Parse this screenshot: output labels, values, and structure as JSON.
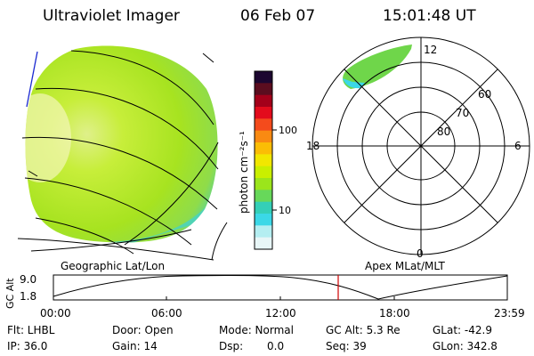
{
  "header": {
    "title": "Ultraviolet Imager",
    "date": "06 Feb 07",
    "time": "15:01:48 UT"
  },
  "colorbar": {
    "label": "photon cm⁻²s⁻¹",
    "ticks": [
      "100",
      "10"
    ],
    "colors": [
      "#1c0630",
      "#5b0d1f",
      "#a4001a",
      "#e30b1c",
      "#f44b1c",
      "#f98a12",
      "#fbbd05",
      "#f1e700",
      "#c9ef00",
      "#9be51b",
      "#67d85a",
      "#34cfb7",
      "#3bd8e7",
      "#b4eef1",
      "#e8f6f7"
    ]
  },
  "polar": {
    "mlt_labels": {
      "top": "12",
      "left": "18",
      "right": "6",
      "bottom": "0"
    },
    "lat_labels": [
      "60",
      "70",
      "80"
    ]
  },
  "labels": {
    "geo": "Geographic Lat/Lon",
    "apex": "Apex MLat/MLT"
  },
  "altplot": {
    "ylabel": "GC Alt",
    "yticks": [
      "9.0",
      "1.8"
    ],
    "xticks": [
      "00:00",
      "06:00",
      "12:00",
      "18:00",
      "23:59"
    ],
    "current_time_color": "#d00000"
  },
  "status": {
    "filter": "Flt: LHBL",
    "ip": "IP: 36.0",
    "door": "Door: Open",
    "gain": "Gain: 14",
    "mode": "Mode: Normal",
    "dsp": "Dsp:",
    "dsp_value": "0.0",
    "gc_alt": "GC Alt: 5.3 Re",
    "seq": "Seq: 39",
    "glat": "GLat: -42.9",
    "glon": "GLon: 342.8"
  }
}
